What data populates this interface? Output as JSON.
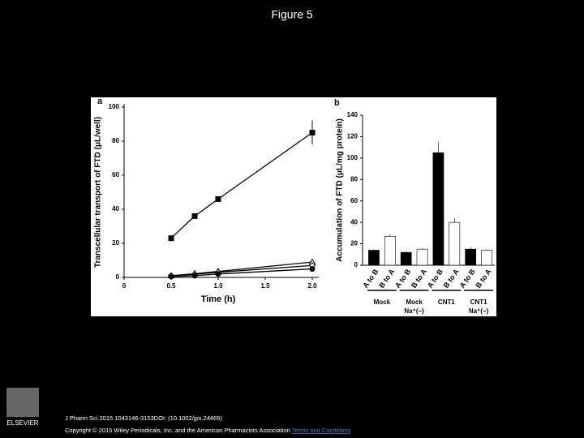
{
  "title": "Figure 5",
  "chart_data": [
    {
      "type": "line",
      "panel": "a",
      "x_label": "Time (h)",
      "y_label": "Transcellular transport of FTD (μL/well)",
      "x": [
        0.5,
        0.75,
        1.0,
        2.0
      ],
      "series": [
        {
          "color": "#000000",
          "marker": "square",
          "values": [
            23,
            36,
            46,
            85
          ],
          "errors": [
            1,
            1,
            1,
            7
          ]
        },
        {
          "color": "#000000",
          "marker": "triangle",
          "values": [
            1,
            2.2,
            3.5,
            9
          ]
        },
        {
          "color": "#000000",
          "marker": "diamond",
          "values": [
            1,
            1.8,
            3,
            7
          ]
        },
        {
          "color": "#000000",
          "marker": "circle",
          "values": [
            0.5,
            1,
            2,
            5
          ]
        }
      ],
      "xlim": [
        0,
        2.0
      ],
      "xticks": [
        0,
        0.5,
        {
          "value": 1.0,
          "label": "1.0"
        },
        1.5,
        {
          "value": 2.0,
          "label": "2.0"
        }
      ],
      "ylim": [
        0,
        100
      ],
      "yticks": [
        0,
        20,
        40,
        60,
        80,
        100
      ]
    },
    {
      "type": "bar",
      "panel": "b",
      "y_label": "Accumulation of FTD (μL/mg protein)",
      "categories": [
        "A to B",
        "B to A",
        "A to B",
        "B to A",
        "A to B",
        "B to A",
        "A to B",
        "B to A"
      ],
      "values": [
        14,
        27,
        12,
        15,
        105,
        40,
        15,
        14
      ],
      "errors": [
        1,
        2,
        1,
        1,
        10,
        4,
        2,
        1
      ],
      "colors": [
        "#000000",
        "#ffffff",
        "#000000",
        "#ffffff",
        "#000000",
        "#ffffff",
        "#000000",
        "#ffffff"
      ],
      "groups": [
        [
          "Mock"
        ],
        [
          "Mock",
          "Na⁺(−)"
        ],
        [
          "CNT1"
        ],
        [
          "CNT1",
          "Na⁺(−)"
        ]
      ],
      "ylim": [
        0,
        140
      ],
      "yticks": [
        0,
        20,
        40,
        60,
        80,
        100,
        120,
        140
      ]
    }
  ],
  "footer": {
    "citation": "J Pharm Sci 2015 1043146-3153DOI: (10.1002/jps.24465)",
    "copyright": "Copyright © 2015 Wiley Periodicals, Inc. and the American Pharmacists Association",
    "link": "Terms and Conditions",
    "logo": "ELSEVIER"
  }
}
